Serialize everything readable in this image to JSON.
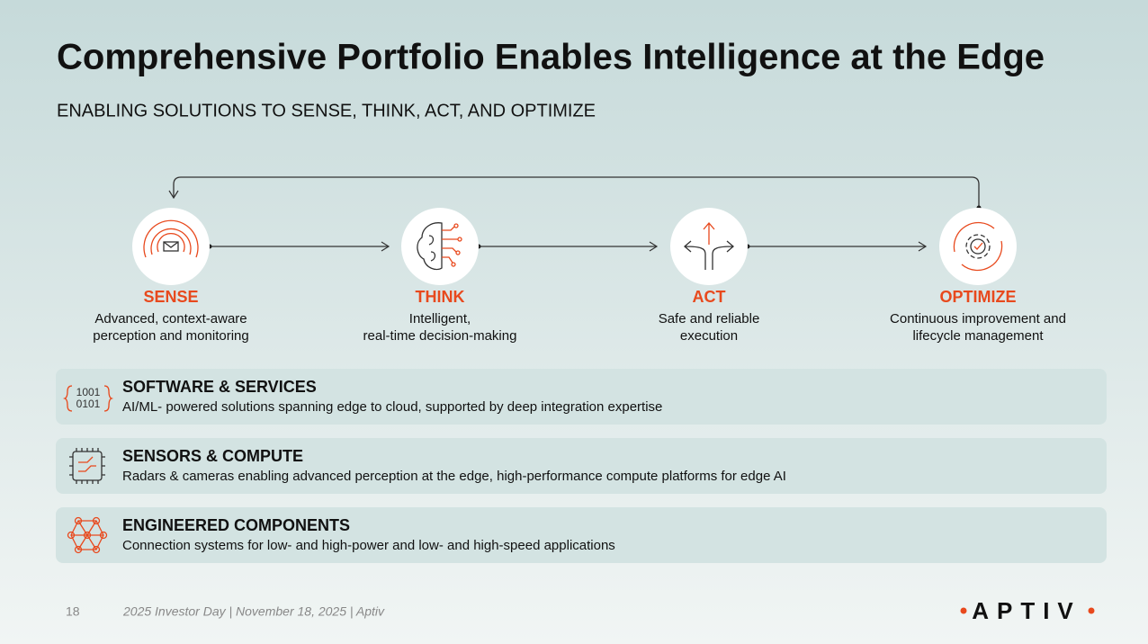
{
  "header": {
    "title": "Comprehensive Portfolio Enables Intelligence at the Edge",
    "subtitle": "ENABLING SOLUTIONS TO SENSE, THINK, ACT, AND OPTIMIZE"
  },
  "steps": [
    {
      "label": "SENSE",
      "description": [
        "Advanced, context-aware",
        "perception and monitoring"
      ]
    },
    {
      "label": "THINK",
      "description": [
        "Intelligent,",
        "real-time decision-making"
      ]
    },
    {
      "label": "ACT",
      "description": [
        "Safe and reliable",
        "execution"
      ]
    },
    {
      "label": "OPTIMIZE",
      "description": [
        "Continuous improvement and",
        "lifecycle management"
      ]
    }
  ],
  "portfolio": [
    {
      "icon_text": [
        "1001",
        "0101"
      ],
      "title": "SOFTWARE & SERVICES",
      "description": "AI/ML- powered solutions spanning edge to cloud, supported by deep integration expertise"
    },
    {
      "title": "SENSORS & COMPUTE",
      "description": "Radars & cameras enabling advanced perception at the edge, high-performance compute platforms for edge AI"
    },
    {
      "title": "ENGINEERED COMPONENTS",
      "description": "Connection systems for low- and high-power and low- and high-speed applications"
    }
  ],
  "footer": {
    "page": 18,
    "text": "2025 Investor Day | November 18, 2025 | Aptiv",
    "logo": "APTIV"
  }
}
